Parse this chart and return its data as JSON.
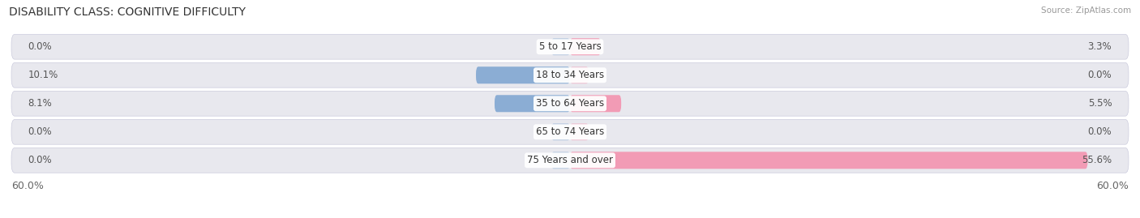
{
  "title": "DISABILITY CLASS: COGNITIVE DIFFICULTY",
  "source": "Source: ZipAtlas.com",
  "categories": [
    "5 to 17 Years",
    "18 to 34 Years",
    "35 to 64 Years",
    "65 to 74 Years",
    "75 Years and over"
  ],
  "male_values": [
    0.0,
    10.1,
    8.1,
    0.0,
    0.0
  ],
  "female_values": [
    3.3,
    0.0,
    5.5,
    0.0,
    55.6
  ],
  "max_val": 60.0,
  "male_color": "#8badd4",
  "female_color": "#f29bb5",
  "row_bg_color": "#e8e8ee",
  "row_bg_light": "#f2f2f7",
  "bg_color": "#ffffff",
  "title_fontsize": 10,
  "label_fontsize": 8.5,
  "value_fontsize": 8.5,
  "legend_fontsize": 9,
  "axis_label_fontsize": 9,
  "title_color": "#333333",
  "source_color": "#999999",
  "label_color": "#333333",
  "value_color": "#555555"
}
